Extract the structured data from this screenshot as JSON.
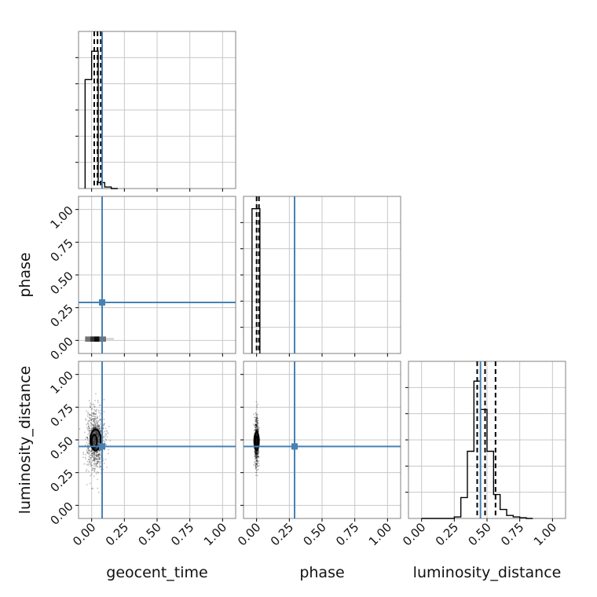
{
  "chart_data": {
    "type": "corner",
    "parameters": [
      "geocent_time",
      "phase",
      "luminosity_distance"
    ],
    "tick_labels": [
      "0.00",
      "0.25",
      "0.50",
      "0.75",
      "1.00"
    ],
    "axis_range": [
      -0.1,
      1.1
    ],
    "grid": true,
    "truth_color": "#4682b4",
    "truths": {
      "geocent_time": 0.08,
      "phase": 0.29,
      "luminosity_distance": 0.45
    },
    "marginals": [
      {
        "parameter": "geocent_time",
        "bin_edges": [
          -0.05,
          0.0,
          0.05,
          0.1,
          0.15,
          0.2
        ],
        "counts": [
          0.73,
          0.92,
          0.04,
          0.01,
          0.0
        ],
        "quantiles": [
          0.02,
          0.045,
          0.07
        ]
      },
      {
        "parameter": "phase",
        "bin_edges": [
          -0.035,
          -0.005,
          0.025
        ],
        "counts": [
          0.97,
          0.97
        ],
        "quantiles": [
          0.0,
          0.018
        ]
      },
      {
        "parameter": "luminosity_distance",
        "bin_edges": [
          0.0,
          0.05,
          0.1,
          0.15,
          0.2,
          0.25,
          0.3,
          0.35,
          0.4,
          0.45,
          0.5,
          0.55,
          0.6,
          0.65,
          0.7,
          0.75,
          0.8,
          0.85
        ],
        "counts": [
          0.0,
          0.0,
          0.0,
          0.0,
          0.0,
          0.01,
          0.14,
          0.45,
          0.92,
          0.73,
          0.45,
          0.16,
          0.06,
          0.02,
          0.01,
          0.005,
          0.0
        ],
        "quantiles": [
          0.425,
          0.485,
          0.565
        ]
      }
    ],
    "joint": [
      {
        "x": "geocent_time",
        "y": "phase",
        "bins": [
          {
            "x0": -0.05,
            "x1": -0.01,
            "y0": -0.01,
            "y1": 0.03,
            "density": 0.55
          },
          {
            "x0": -0.01,
            "x1": 0.02,
            "y0": -0.01,
            "y1": 0.03,
            "density": 0.8
          },
          {
            "x0": 0.02,
            "x1": 0.06,
            "y0": -0.01,
            "y1": 0.03,
            "density": 0.95
          },
          {
            "x0": 0.06,
            "x1": 0.11,
            "y0": -0.01,
            "y1": 0.03,
            "density": 0.55
          },
          {
            "x0": 0.11,
            "x1": 0.17,
            "y0": 0.0,
            "y1": 0.02,
            "density": 0.15
          }
        ]
      },
      {
        "x": "geocent_time",
        "y": "luminosity_distance",
        "cloud": {
          "cx": 0.03,
          "cy": 0.5,
          "sx": 0.035,
          "sy": 0.12,
          "n": 850
        },
        "contours": [
          {
            "cx": 0.03,
            "cy": 0.5,
            "rx": 0.04,
            "ry": 0.08
          },
          {
            "cx": 0.02,
            "cy": 0.49,
            "rx": 0.02,
            "ry": 0.05
          }
        ]
      },
      {
        "x": "phase",
        "y": "luminosity_distance",
        "cloud": {
          "cx": 0.0,
          "cy": 0.49,
          "sx": 0.008,
          "sy": 0.09,
          "n": 600
        },
        "contours": [
          {
            "cx": 0.0,
            "cy": 0.49,
            "rx": 0.018,
            "ry": 0.07
          },
          {
            "cx": 0.0,
            "cy": 0.49,
            "rx": 0.01,
            "ry": 0.035
          }
        ]
      }
    ]
  }
}
